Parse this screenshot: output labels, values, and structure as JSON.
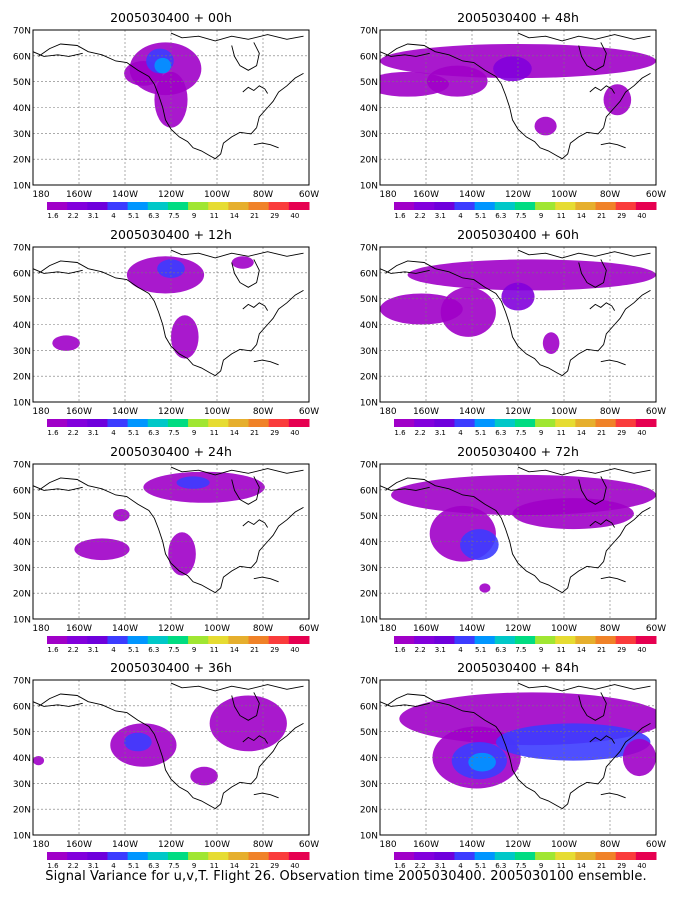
{
  "caption": "Signal Variance for u,v,T. Flight 26. Observation time 2005030400. 2005030100 ensemble.",
  "lat_labels": [
    "70N",
    "60N",
    "50N",
    "40N",
    "30N",
    "20N",
    "10N"
  ],
  "lon_labels": [
    "180",
    "160W",
    "140W",
    "120W",
    "100W",
    "80W",
    "60W"
  ],
  "colorbar": {
    "labels": [
      "1.6",
      "2.2",
      "3.1",
      "4",
      "5.1",
      "6.3",
      "7.5",
      "9",
      "11",
      "14",
      "21",
      "29",
      "40"
    ],
    "colors": [
      "#a000c8",
      "#8200dc",
      "#6e00dc",
      "#3c3cff",
      "#0096ff",
      "#00c8c8",
      "#00dc82",
      "#a0e632",
      "#e6dc32",
      "#e6af2d",
      "#f08228",
      "#fa3c3c",
      "#e60050"
    ]
  },
  "panels": [
    {
      "title": "2005030400 + 00h"
    },
    {
      "title": "2005030400 + 48h"
    },
    {
      "title": "2005030400 + 12h"
    },
    {
      "title": "2005030400 + 60h"
    },
    {
      "title": "2005030400 + 24h"
    },
    {
      "title": "2005030400 + 72h"
    },
    {
      "title": "2005030400 + 36h"
    },
    {
      "title": "2005030400 + 84h"
    }
  ]
}
